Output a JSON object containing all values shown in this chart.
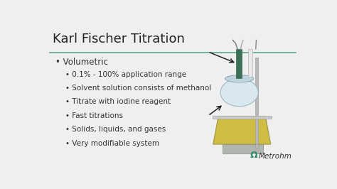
{
  "title": "Karl Fischer Titration",
  "background_color": "#efefef",
  "title_color": "#222222",
  "title_fontsize": 13,
  "separator_color": "#5aaa8a",
  "bullet1": "Volumetric",
  "sub_bullets": [
    "0.1% - 100% application range",
    "Solvent solution consists of methanol",
    "Titrate with iodine reagent",
    "Fast titrations",
    "Solids, liquids, and gases",
    "Very modifiable system"
  ],
  "text_color": "#333333",
  "body_fontsize": 7.5,
  "metrohm_color": "#2e8b6e",
  "metrohm_text": "Metrohm"
}
